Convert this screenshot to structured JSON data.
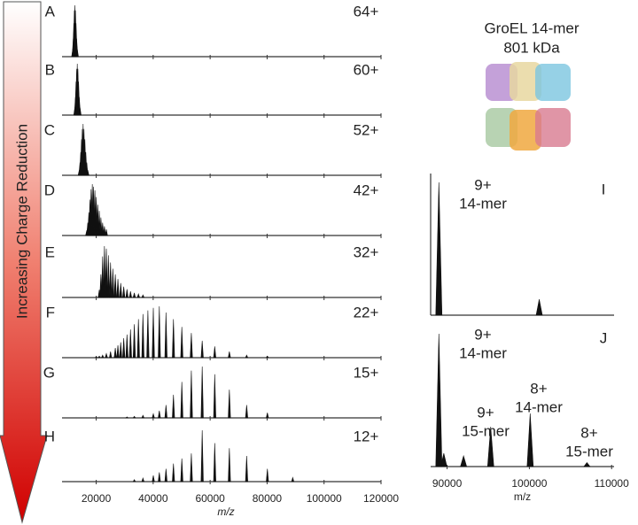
{
  "arrow_label": "Increasing Charge Reduction",
  "protein": {
    "name": "GroEL 14-mer",
    "mass": "801 kDa"
  },
  "chart_data": [
    {
      "type": "spectrum",
      "label": "A",
      "charge_label": "64+",
      "xlim": [
        8000,
        120000
      ],
      "ylim": [
        0,
        100
      ],
      "x": [
        13350,
        13131,
        12919,
        12714,
        12516,
        12323,
        12136,
        11955,
        11779
      ],
      "values": [
        15,
        35,
        65,
        90,
        100,
        90,
        65,
        35,
        15
      ]
    },
    {
      "type": "spectrum",
      "label": "B",
      "charge_label": "60+",
      "xlim": [
        8000,
        120000
      ],
      "ylim": [
        0,
        100
      ],
      "x": [
        14304,
        14053,
        13810,
        13576,
        13350,
        13131,
        12919,
        12714,
        12516
      ],
      "values": [
        15,
        35,
        65,
        90,
        100,
        90,
        65,
        35,
        15
      ]
    },
    {
      "type": "spectrum",
      "label": "C",
      "charge_label": "52+",
      "xlim": [
        8000,
        120000
      ],
      "ylim": [
        0,
        100
      ],
      "x": [
        17043,
        16688,
        16347,
        16020,
        15706,
        15404,
        15113,
        14833,
        14564,
        14304,
        14053
      ],
      "values": [
        10,
        25,
        45,
        70,
        90,
        100,
        90,
        70,
        45,
        25,
        10
      ]
    },
    {
      "type": "spectrum",
      "label": "D",
      "charge_label": "42+",
      "xlim": [
        8000,
        120000
      ],
      "ylim": [
        0,
        100
      ],
      "x": [
        23559,
        22886,
        22250,
        21649,
        21079,
        20538,
        20025,
        19537,
        19071,
        18628,
        18205,
        17800,
        17413,
        17043,
        16688
      ],
      "values": [
        12,
        18,
        25,
        35,
        48,
        60,
        75,
        88,
        95,
        100,
        90,
        70,
        45,
        25,
        10
      ]
    },
    {
      "type": "spectrum",
      "label": "E",
      "charge_label": "32+",
      "xlim": [
        8000,
        120000
      ],
      "ylim": [
        0,
        100
      ],
      "x": [
        36409,
        34826,
        33375,
        32040,
        30808,
        29667,
        28607,
        27621,
        26700,
        25839,
        25031,
        24273,
        23559,
        22886,
        22250,
        21649,
        21079
      ],
      "values": [
        5,
        7,
        9,
        12,
        16,
        21,
        28,
        36,
        45,
        56,
        68,
        82,
        95,
        100,
        80,
        45,
        15
      ]
    },
    {
      "type": "spectrum",
      "label": "F",
      "charge_label": "22+",
      "xlim": [
        8000,
        120000
      ],
      "ylim": [
        0,
        100
      ],
      "x": [
        80100,
        72818,
        66750,
        61615,
        57214,
        53400,
        50063,
        47118,
        44500,
        42158,
        40050,
        38143,
        36409,
        34826,
        33375,
        32040,
        30808,
        29667,
        28607,
        27621,
        26700,
        25031,
        23559,
        22250,
        21079,
        20025
      ],
      "values": [
        3,
        5,
        12,
        22,
        33,
        48,
        60,
        75,
        88,
        100,
        97,
        92,
        85,
        75,
        65,
        55,
        45,
        38,
        30,
        24,
        19,
        12,
        8,
        5,
        3,
        2
      ]
    },
    {
      "type": "spectrum",
      "label": "G",
      "charge_label": "15+",
      "xlim": [
        8000,
        120000
      ],
      "ylim": [
        0,
        100
      ],
      "x": [
        80100,
        72818,
        66750,
        61615,
        57214,
        53400,
        50063,
        47118,
        44500,
        42158,
        40050,
        36409,
        33375,
        30808
      ],
      "values": [
        10,
        25,
        55,
        85,
        100,
        92,
        70,
        45,
        25,
        14,
        8,
        5,
        3,
        2
      ]
    },
    {
      "type": "spectrum",
      "label": "H",
      "charge_label": "12+",
      "xlim": [
        8000,
        120000
      ],
      "ylim": [
        0,
        100
      ],
      "x": [
        89000,
        80100,
        72818,
        66750,
        61615,
        57214,
        53400,
        50063,
        47118,
        44500,
        42158,
        40050,
        36409,
        33375
      ],
      "values": [
        8,
        25,
        50,
        65,
        75,
        100,
        55,
        45,
        35,
        25,
        18,
        12,
        7,
        4
      ],
      "xticks": [
        20000,
        40000,
        60000,
        80000,
        100000,
        120000
      ],
      "xlabel": "m/z"
    },
    {
      "type": "spectrum",
      "label": "I",
      "xlim": [
        88000,
        110300
      ],
      "ylim": [
        0,
        100
      ],
      "x": [
        89000,
        101200
      ],
      "values": [
        100,
        12
      ],
      "annotations": [
        [
          "9+",
          "14-mer"
        ]
      ]
    },
    {
      "type": "spectrum",
      "label": "J",
      "xlim": [
        88000,
        110300
      ],
      "ylim": [
        0,
        100
      ],
      "x": [
        89000,
        89600,
        92000,
        95300,
        100100,
        107000
      ],
      "values": [
        100,
        10,
        8,
        30,
        40,
        3
      ],
      "annotations": [
        [
          "9+",
          "14-mer"
        ],
        [
          "9+",
          "15-mer"
        ],
        [
          "8+",
          "14-mer"
        ],
        [
          "8+",
          "15-mer"
        ]
      ],
      "xticks": [
        90000,
        100000,
        110000
      ],
      "xlabel": "m/z"
    }
  ]
}
